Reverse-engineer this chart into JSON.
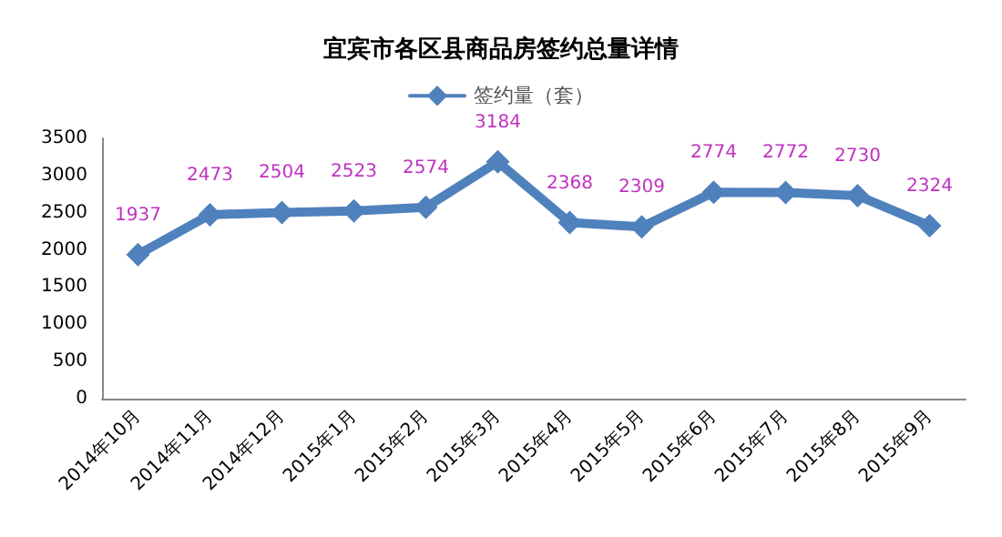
{
  "chart_data": {
    "type": "line",
    "title": "宜宾市各区县商品房签约总量详情",
    "categories": [
      "2014年10月",
      "2014年11月",
      "2014年12月",
      "2015年1月",
      "2015年2月",
      "2015年3月",
      "2015年4月",
      "2015年5月",
      "2015年6月",
      "2015年7月",
      "2015年8月",
      "2015年9月"
    ],
    "series": [
      {
        "name": "签约量（套）",
        "color": "#4f81bd",
        "values": [
          1937,
          2473,
          2504,
          2523,
          2574,
          3184,
          2368,
          2309,
          2774,
          2772,
          2730,
          2324
        ]
      }
    ],
    "ylim": [
      0,
      3500
    ],
    "yticks": [
      0,
      500,
      1000,
      1500,
      2000,
      2500,
      3000,
      3500
    ],
    "grid": false,
    "legend": "top",
    "marker": "diamond",
    "line_style": "solid",
    "data_labels": true
  }
}
